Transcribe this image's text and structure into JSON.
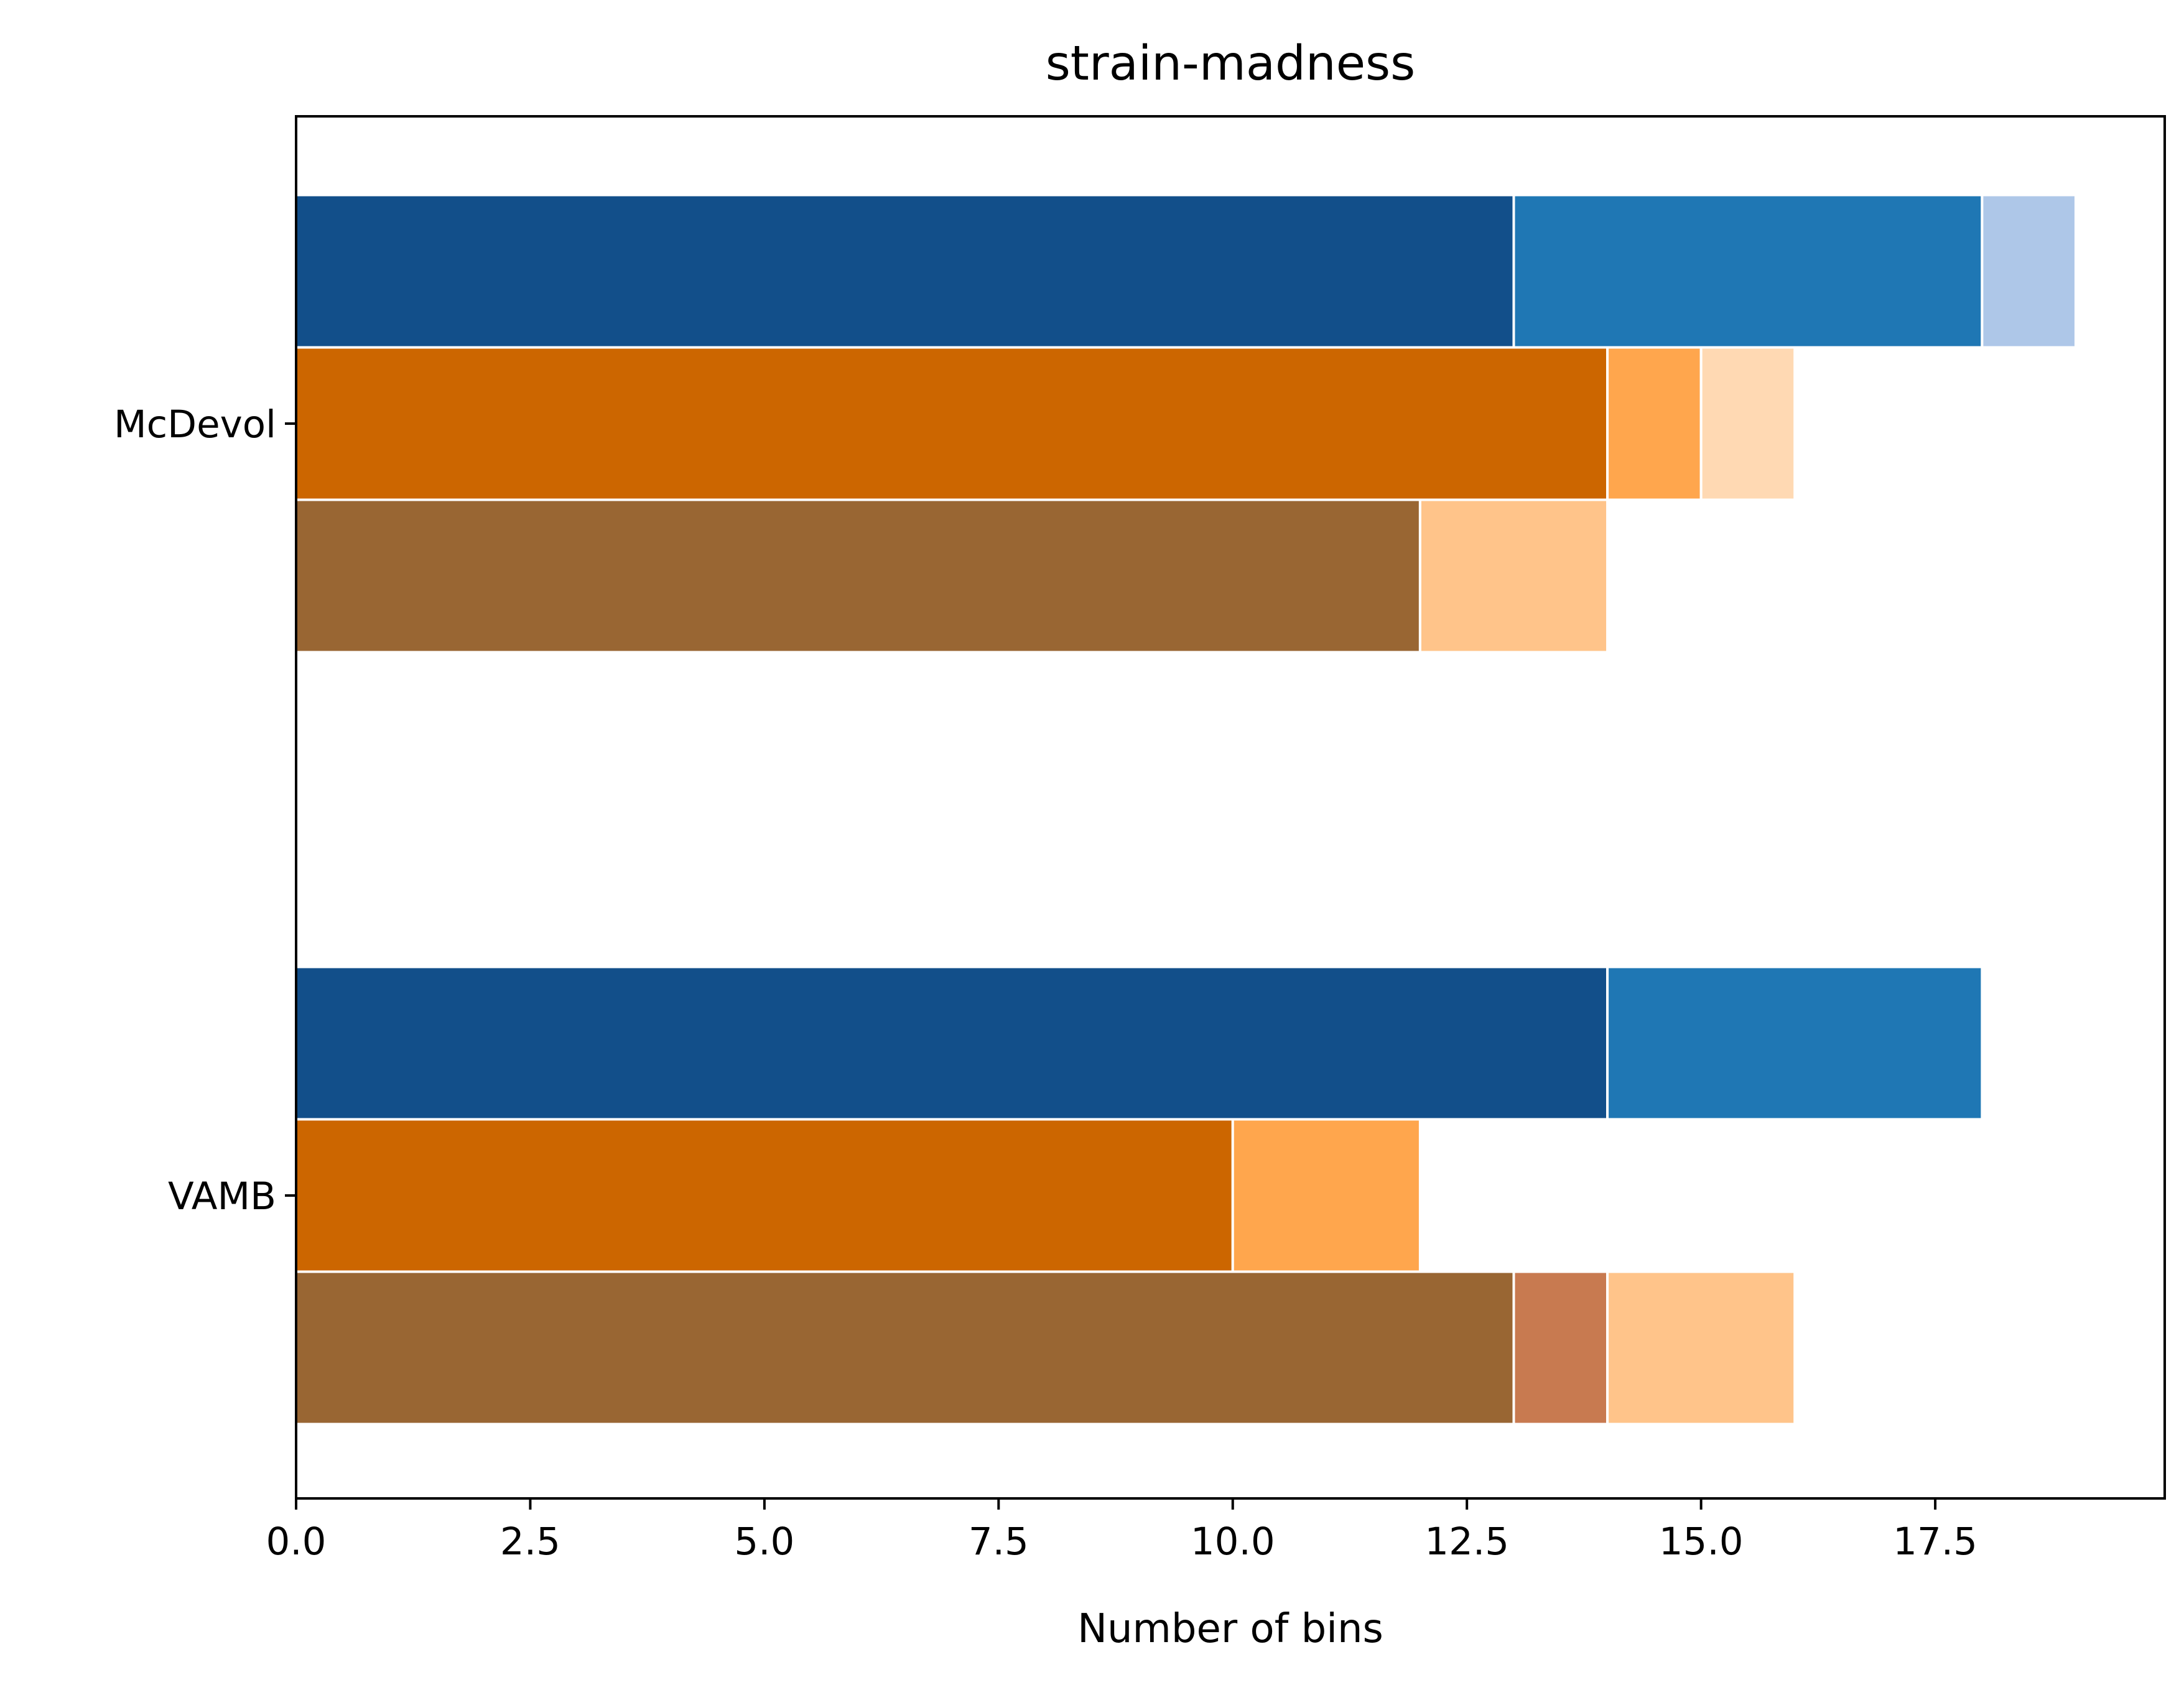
{
  "chart_data": {
    "type": "bar",
    "orientation": "horizontal",
    "stacked": true,
    "title": "strain-madness",
    "xlabel": "Number of bins",
    "ylabel": "",
    "xlim": [
      0,
      19.95
    ],
    "xticks": [
      "0.0",
      "2.5",
      "5.0",
      "7.5",
      "10.0",
      "12.5",
      "15.0",
      "17.5"
    ],
    "xtick_values": [
      0,
      2.5,
      5,
      7.5,
      10,
      12.5,
      15,
      17.5
    ],
    "categories": [
      "McDevol",
      "VAMB"
    ],
    "grid": false,
    "legend": "none",
    "groups": [
      {
        "category": "McDevol",
        "bars": [
          {
            "segments": [
              {
                "value": 13,
                "color": "#124f8a"
              },
              {
                "value": 5,
                "color": "#1f77b4"
              },
              {
                "value": 1,
                "color": "#aec7e8"
              }
            ]
          },
          {
            "segments": [
              {
                "value": 14,
                "color": "#cc6600"
              },
              {
                "value": 1,
                "color": "#ffa64d"
              },
              {
                "value": 1,
                "color": "#ffd9b3"
              }
            ]
          },
          {
            "segments": [
              {
                "value": 12,
                "color": "#996633"
              },
              {
                "value": 2,
                "color": "#ffc48a"
              }
            ]
          }
        ]
      },
      {
        "category": "VAMB",
        "bars": [
          {
            "segments": [
              {
                "value": 14,
                "color": "#124f8a"
              },
              {
                "value": 4,
                "color": "#1f77b4"
              }
            ]
          },
          {
            "segments": [
              {
                "value": 10,
                "color": "#cc6600"
              },
              {
                "value": 2,
                "color": "#ffa64d"
              }
            ]
          },
          {
            "segments": [
              {
                "value": 13,
                "color": "#996633"
              },
              {
                "value": 1,
                "color": "#c87a50"
              },
              {
                "value": 2,
                "color": "#ffc48a"
              }
            ]
          }
        ]
      }
    ]
  }
}
